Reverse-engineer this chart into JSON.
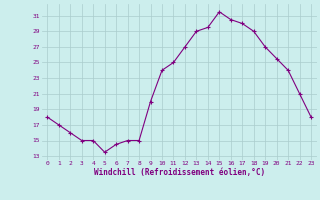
{
  "x": [
    0,
    1,
    2,
    3,
    4,
    5,
    6,
    7,
    8,
    9,
    10,
    11,
    12,
    13,
    14,
    15,
    16,
    17,
    18,
    19,
    20,
    21,
    22,
    23
  ],
  "y": [
    18,
    17,
    16,
    15,
    15,
    13.5,
    14.5,
    15,
    15,
    20,
    24,
    25,
    27,
    29,
    29.5,
    31.5,
    30.5,
    30,
    29,
    27,
    25.5,
    24,
    21,
    18
  ],
  "line_color": "#800080",
  "marker_color": "#800080",
  "bg_color": "#cceeed",
  "grid_color": "#aacccc",
  "xlabel": "Windchill (Refroidissement éolien,°C)",
  "xlabel_color": "#800080",
  "yticks": [
    13,
    15,
    17,
    19,
    21,
    23,
    25,
    27,
    29,
    31
  ],
  "xticks": [
    0,
    1,
    2,
    3,
    4,
    5,
    6,
    7,
    8,
    9,
    10,
    11,
    12,
    13,
    14,
    15,
    16,
    17,
    18,
    19,
    20,
    21,
    22,
    23
  ],
  "xlim": [
    -0.5,
    23.5
  ],
  "ylim": [
    12.5,
    32.5
  ]
}
